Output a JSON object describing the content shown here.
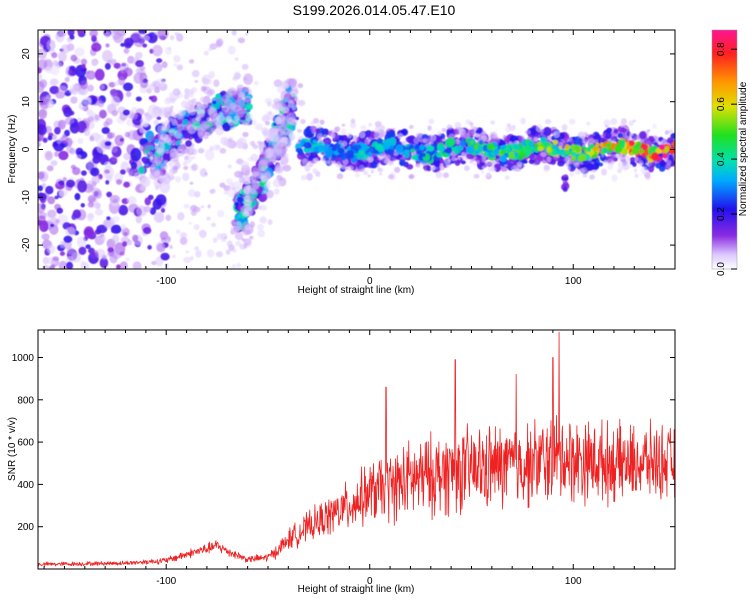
{
  "title": "S199.2026.014.05.47.E10",
  "chart_data": [
    {
      "type": "heatmap",
      "xlabel": "Height of straight line (km)",
      "ylabel": "Frequency (Hz)",
      "xlim": [
        -163,
        150
      ],
      "ylim": [
        -25,
        25
      ],
      "xticks": [
        -100,
        0,
        100
      ],
      "xtick_labels": [
        "-100",
        "0",
        "100"
      ],
      "yticks": [
        -20,
        -10,
        0,
        10,
        20
      ],
      "ytick_labels": [
        "-20",
        "-10",
        "0",
        "10",
        "20"
      ],
      "colorbar": {
        "label": "Normalized spectral amplitude",
        "range": [
          0.0,
          0.87
        ],
        "ticks": [
          0.0,
          0.2,
          0.4,
          0.6,
          0.8
        ],
        "tick_labels": [
          "0.0",
          "0.2",
          "0.4",
          "0.6",
          "0.8"
        ]
      },
      "features": [
        {
          "name": "diffuse scatter",
          "x_range": [
            -163,
            -100
          ],
          "freq_range": [
            -25,
            25
          ],
          "amplitude": 0.15
        },
        {
          "name": "rising branch",
          "points": [
            [
              -110,
              -2
            ],
            [
              -95,
              3
            ],
            [
              -75,
              8
            ],
            [
              -60,
              9
            ]
          ],
          "amplitude": 0.3
        },
        {
          "name": "steep branch",
          "points": [
            [
              -65,
              -14
            ],
            [
              -55,
              -8
            ],
            [
              -45,
              2
            ],
            [
              -38,
              10
            ]
          ],
          "amplitude": 0.3
        },
        {
          "name": "main horizontal branch",
          "x_range": [
            -35,
            150
          ],
          "frequency": 0,
          "amplitude_start": 0.35,
          "amplitude_end": 0.87
        },
        {
          "name": "isolated blob",
          "x": 96,
          "frequency": -7,
          "amplitude": 0.1
        }
      ]
    },
    {
      "type": "line",
      "xlabel": "Height of straight line (km)",
      "ylabel": "SNR (10 * v/v)",
      "xlim": [
        -163,
        150
      ],
      "ylim": [
        0,
        1130
      ],
      "xticks": [
        -100,
        0,
        100
      ],
      "xtick_labels": [
        "-100",
        "0",
        "100"
      ],
      "yticks": [
        200,
        400,
        600,
        800,
        1000
      ],
      "ytick_labels": [
        "200",
        "400",
        "600",
        "800",
        "1000"
      ],
      "series": [
        {
          "name": "SNR",
          "color": "#ee2222",
          "x": [
            -163,
            -140,
            -120,
            -100,
            -90,
            -80,
            -75,
            -70,
            -60,
            -50,
            -45,
            -40,
            -30,
            -20,
            -10,
            0,
            10,
            20,
            30,
            40,
            50,
            60,
            70,
            80,
            90,
            95,
            100,
            110,
            120,
            130,
            140,
            150
          ],
          "mean": [
            22,
            25,
            28,
            40,
            70,
            95,
            110,
            85,
            45,
            55,
            90,
            140,
            200,
            250,
            300,
            360,
            390,
            420,
            440,
            460,
            470,
            480,
            490,
            500,
            520,
            530,
            520,
            510,
            500,
            500,
            510,
            500
          ],
          "spread": [
            12,
            12,
            12,
            18,
            25,
            30,
            35,
            28,
            18,
            25,
            40,
            60,
            85,
            110,
            140,
            170,
            200,
            220,
            230,
            240,
            240,
            240,
            240,
            240,
            250,
            250,
            240,
            230,
            220,
            210,
            210,
            200
          ],
          "peaks": [
            [
              93,
              1120
            ],
            [
              42,
              990
            ],
            [
              90,
              1000
            ],
            [
              72,
              920
            ],
            [
              8,
              860
            ]
          ]
        }
      ]
    }
  ]
}
